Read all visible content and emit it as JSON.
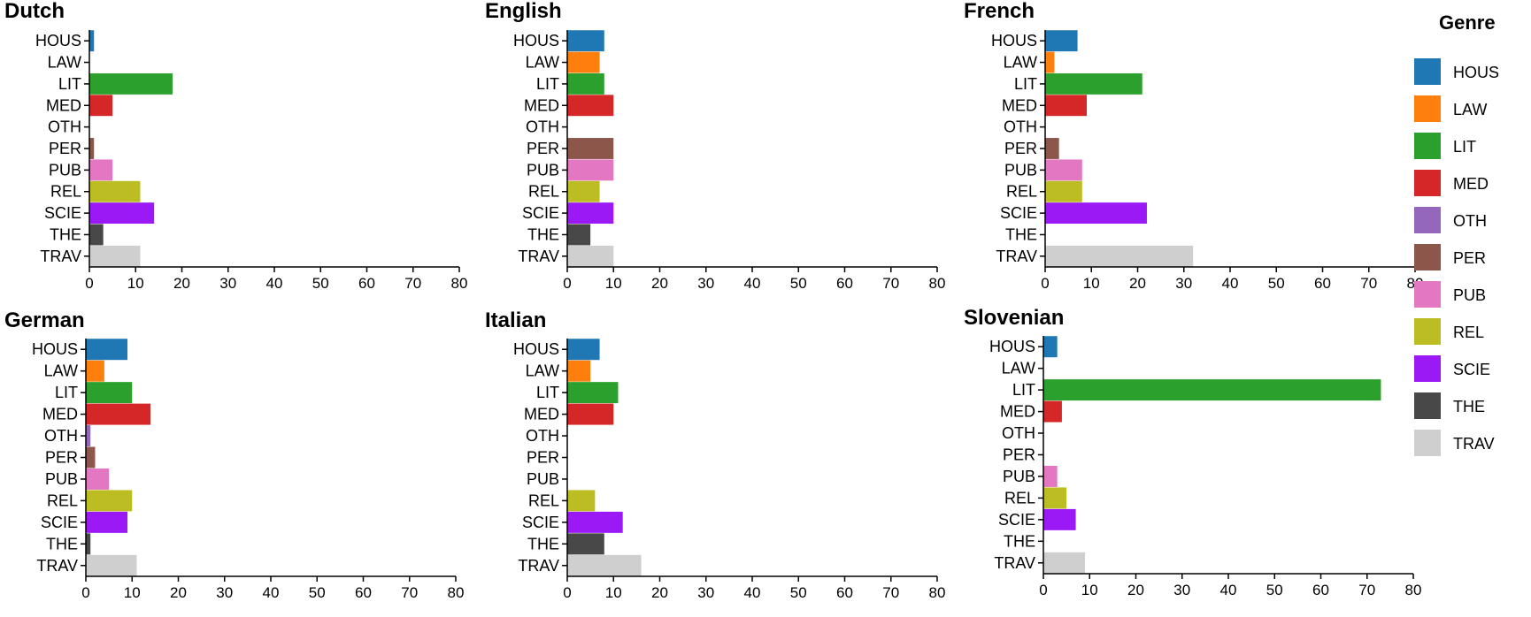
{
  "chart_data": {
    "type": "bar",
    "orientation": "horizontal",
    "categories": [
      "HOUS",
      "LAW",
      "LIT",
      "MED",
      "OTH",
      "PER",
      "PUB",
      "REL",
      "SCIE",
      "THE",
      "TRAV"
    ],
    "xlim": [
      0,
      80
    ],
    "xticks": [
      0,
      10,
      20,
      30,
      40,
      50,
      60,
      70,
      80
    ],
    "colors": {
      "HOUS": "#1f77b4",
      "LAW": "#ff7f0e",
      "LIT": "#2ca02c",
      "MED": "#d62728",
      "OTH": "#9467bd",
      "PER": "#8c564b",
      "PUB": "#e377c2",
      "REL": "#bcbd22",
      "SCIE": "#9b19f5",
      "THE": "#484848",
      "TRAV": "#cfcfcf"
    },
    "legend": {
      "title": "Genre",
      "placement": "right",
      "entries": [
        "HOUS",
        "LAW",
        "LIT",
        "MED",
        "OTH",
        "PER",
        "PUB",
        "REL",
        "SCIE",
        "THE",
        "TRAV"
      ]
    },
    "panels": [
      {
        "title": "Dutch",
        "values": [
          1,
          0,
          18,
          5,
          0,
          1,
          5,
          11,
          14,
          3,
          11
        ]
      },
      {
        "title": "English",
        "values": [
          8,
          7,
          8,
          10,
          0,
          10,
          10,
          7,
          10,
          5,
          10
        ]
      },
      {
        "title": "French",
        "values": [
          7,
          2,
          21,
          9,
          0,
          3,
          8,
          8,
          22,
          0,
          32
        ]
      },
      {
        "title": "German",
        "values": [
          9,
          4,
          10,
          14,
          1,
          2,
          5,
          10,
          9,
          1,
          11
        ]
      },
      {
        "title": "Italian",
        "values": [
          7,
          5,
          11,
          10,
          0,
          0,
          0,
          6,
          12,
          8,
          16
        ]
      },
      {
        "title": "Slovenian",
        "values": [
          3,
          0,
          73,
          4,
          0,
          0,
          3,
          5,
          7,
          0,
          9
        ]
      }
    ]
  }
}
